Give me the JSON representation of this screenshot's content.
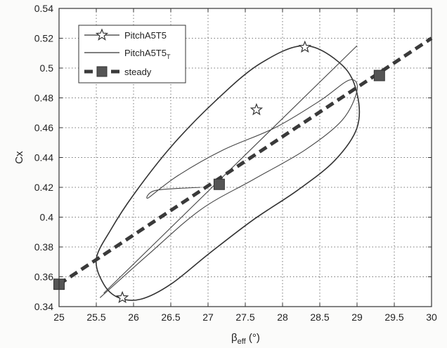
{
  "chart_data": {
    "type": "line",
    "xlabel": "β",
    "xlabel_sub": "eff",
    "xlabel_unit": " (°)",
    "ylabel": "Cx",
    "xlim": [
      25,
      30
    ],
    "ylim": [
      0.34,
      0.54
    ],
    "x_ticks": [
      "25",
      "25.5",
      "26",
      "26.5",
      "27",
      "27.5",
      "28",
      "28.5",
      "29",
      "29.5",
      "30"
    ],
    "y_ticks": [
      "0.34",
      "0.36",
      "0.38",
      "0.4",
      "0.42",
      "0.44",
      "0.46",
      "0.48",
      "0.5",
      "0.52",
      "0.54"
    ],
    "grid": true,
    "legend_position": "top-left",
    "legend": [
      {
        "label": "PitchA5T5",
        "sub": "",
        "marker": "star"
      },
      {
        "label": "PitchA5T5",
        "sub": "T",
        "marker": "none"
      },
      {
        "label": "steady",
        "sub": "",
        "marker": "square"
      }
    ],
    "series": [
      {
        "name": "PitchA5T5",
        "style": "solid",
        "color": "#333333",
        "x": [
          25.5,
          25.6,
          25.8,
          26.1,
          26.5,
          27.0,
          27.6,
          28.2,
          28.7,
          29.0,
          29.0,
          28.8,
          28.3,
          27.7,
          27.1,
          26.5,
          26.0,
          25.7,
          25.5
        ],
        "y": [
          0.372,
          0.355,
          0.346,
          0.345,
          0.355,
          0.375,
          0.398,
          0.418,
          0.438,
          0.46,
          0.483,
          0.502,
          0.515,
          0.503,
          0.478,
          0.447,
          0.415,
          0.392,
          0.372
        ],
        "markers_x": [
          25.85,
          27.65,
          28.3
        ],
        "markers_y": [
          0.346,
          0.472,
          0.514
        ]
      },
      {
        "name": "PitchA5T5_T",
        "style": "solid",
        "color": "#444444",
        "x": [
          25.55,
          26.2,
          26.9,
          27.6,
          28.3,
          28.8,
          29.0,
          28.9,
          28.5,
          27.9,
          27.2,
          26.6,
          26.2,
          26.3,
          26.9
        ],
        "y": [
          0.346,
          0.375,
          0.405,
          0.425,
          0.445,
          0.465,
          0.485,
          0.492,
          0.478,
          0.46,
          0.445,
          0.428,
          0.413,
          0.418,
          0.42
        ]
      },
      {
        "name": "PitchA5T5_T_line",
        "style": "solid",
        "color": "#444444",
        "x": [
          25.6,
          29.0
        ],
        "y": [
          0.349,
          0.515
        ]
      },
      {
        "name": "steady",
        "style": "dashed",
        "color": "#3a3a3a",
        "x": [
          25.0,
          30.0
        ],
        "y": [
          0.355,
          0.52
        ],
        "markers_x": [
          25.0,
          27.15,
          29.3
        ],
        "markers_y": [
          0.355,
          0.422,
          0.495
        ]
      }
    ]
  }
}
